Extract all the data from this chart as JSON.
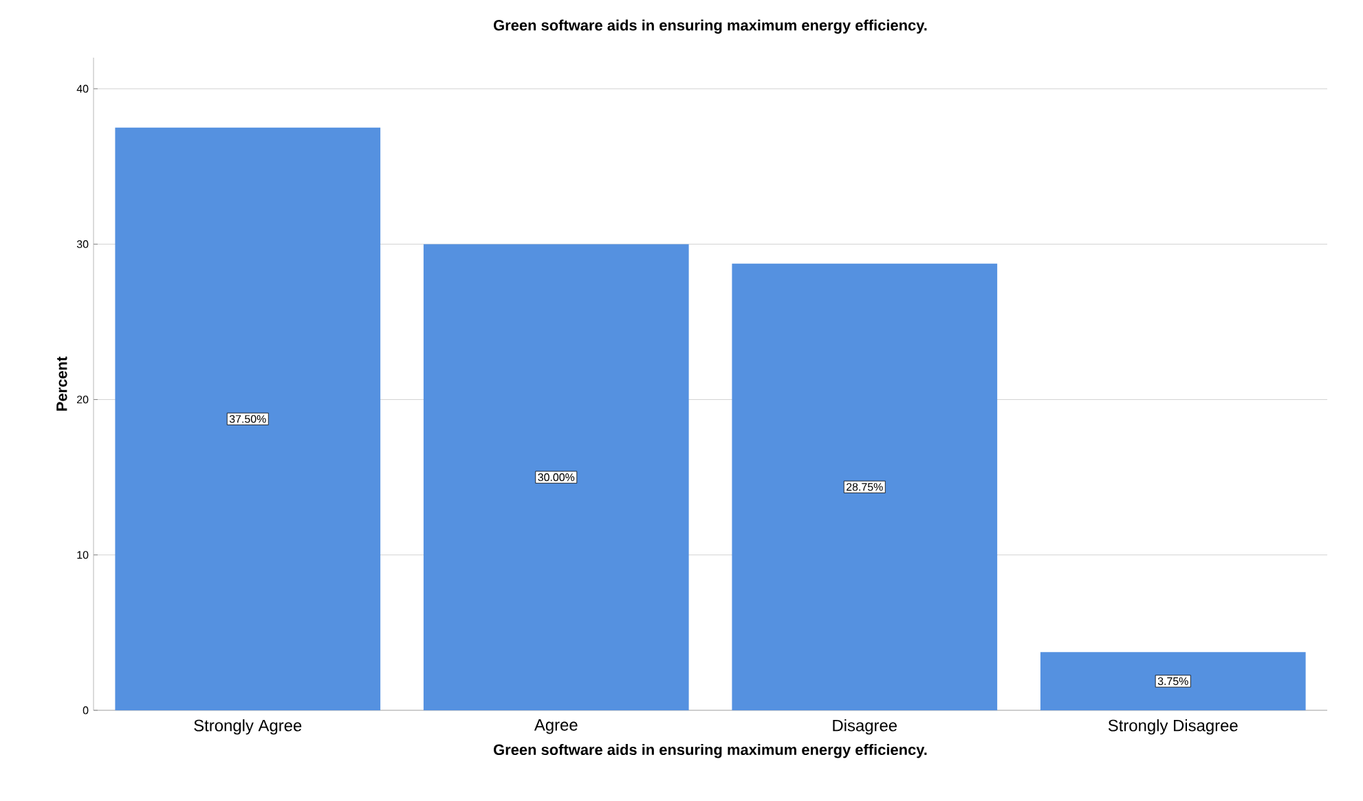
{
  "chart_data": {
    "type": "bar",
    "title": "Green software aids in ensuring maximum energy efficiency.",
    "xlabel": "Green software aids in ensuring maximum energy efficiency.",
    "ylabel": "Percent",
    "categories": [
      "Strongly Agree",
      "Agree",
      "Disagree",
      "Strongly Disagree"
    ],
    "values": [
      37.5,
      30.0,
      28.75,
      3.75
    ],
    "value_labels": [
      "37.50%",
      "30.00%",
      "28.75%",
      "3.75%"
    ],
    "color": "#5591e0",
    "ylim": [
      0,
      42
    ],
    "yticks": [
      0,
      10,
      20,
      30,
      40
    ],
    "grid": "y"
  }
}
